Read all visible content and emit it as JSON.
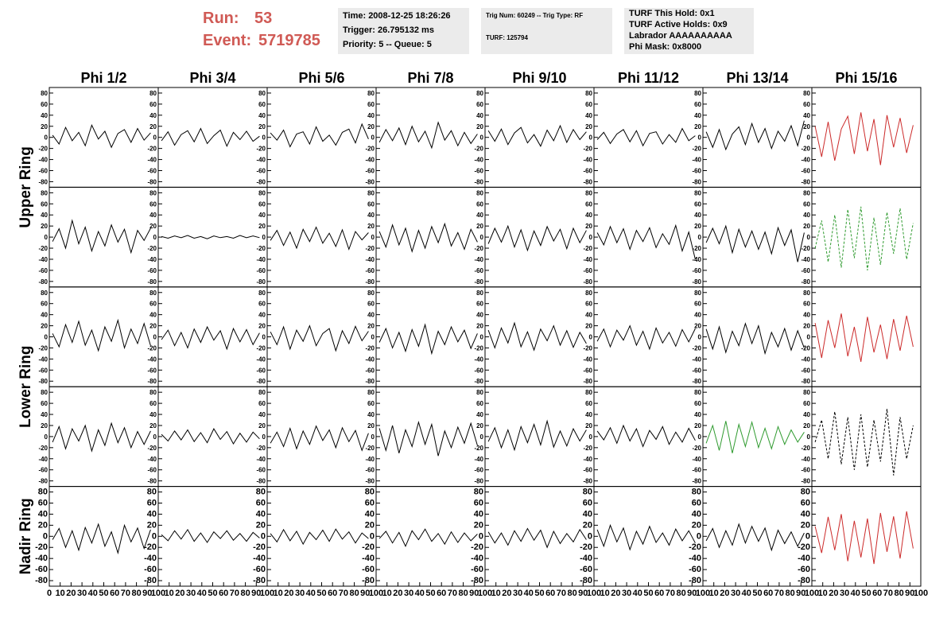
{
  "header": {
    "run_label": "Run:",
    "run": "53",
    "event_label": "Event:",
    "event": "5719785"
  },
  "info_boxes": [
    [
      "Time: 2008-12-25 18:26:26",
      "Trigger: 26.795132 ms",
      "Priority: 5 -- Queue: 5"
    ],
    [
      "Trig Num: 60249 -- Trig Type: RF",
      "TURF: 125794"
    ],
    [
      "TURF This Hold: 0x1",
      "TURF Active Holds: 0x9",
      "Labrador AAAAAAAAAA",
      "Phi Mask: 0x8000"
    ]
  ],
  "chart_data": {
    "type": "line",
    "columns": [
      "Phi 1/2",
      "Phi 3/4",
      "Phi 5/6",
      "Phi 7/8",
      "Phi 9/10",
      "Phi 11/12",
      "Phi 13/14",
      "Phi 15/16"
    ],
    "ring_labels": [
      "Upper Ring",
      "Lower Ring",
      "Nadir Ring"
    ],
    "x": [
      3,
      9,
      15,
      21,
      27,
      33,
      39,
      45,
      51,
      57,
      63,
      69,
      75,
      81,
      87,
      93
    ],
    "xlim": [
      0,
      100
    ],
    "xticks": [
      0,
      10,
      20,
      30,
      40,
      50,
      60,
      70,
      80,
      90,
      100
    ],
    "ylim": [
      -90,
      90
    ],
    "yticks": [
      -80,
      -60,
      -40,
      -20,
      0,
      20,
      40,
      60,
      80
    ],
    "rows": [
      [
        {
          "color": "#000000",
          "values": [
            4,
            -12,
            18,
            -6,
            9,
            -15,
            22,
            -3,
            11,
            -18,
            7,
            14,
            -9,
            16,
            -5,
            8
          ]
        },
        {
          "color": "#000000",
          "values": [
            -6,
            10,
            -14,
            5,
            12,
            -8,
            16,
            -11,
            3,
            13,
            -16,
            9,
            -4,
            11,
            -7,
            2
          ]
        },
        {
          "color": "#000000",
          "values": [
            8,
            -5,
            13,
            -17,
            6,
            10,
            -12,
            19,
            -7,
            4,
            -14,
            9,
            15,
            -10,
            24,
            -3
          ]
        },
        {
          "color": "#000000",
          "values": [
            -9,
            14,
            -6,
            17,
            -13,
            20,
            -8,
            11,
            -19,
            27,
            -5,
            12,
            -15,
            9,
            -11,
            6
          ]
        },
        {
          "color": "#000000",
          "values": [
            12,
            -7,
            15,
            -13,
            8,
            18,
            -10,
            5,
            -16,
            13,
            -6,
            21,
            -9,
            14,
            -4,
            10
          ]
        },
        {
          "color": "#000000",
          "values": [
            -4,
            9,
            -11,
            6,
            14,
            -8,
            12,
            -15,
            7,
            10,
            -12,
            5,
            -9,
            16,
            -6,
            3
          ]
        },
        {
          "color": "#000000",
          "values": [
            10,
            -18,
            14,
            -22,
            6,
            19,
            -13,
            25,
            -9,
            16,
            -20,
            11,
            -7,
            21,
            -15,
            30
          ]
        },
        {
          "color": "#cc2a2a",
          "values": [
            20,
            -35,
            28,
            -42,
            15,
            38,
            -30,
            45,
            -25,
            33,
            -50,
            40,
            -18,
            35,
            -28,
            22
          ]
        }
      ],
      [
        {
          "color": "#000000",
          "values": [
            -8,
            15,
            -20,
            30,
            -12,
            18,
            -25,
            10,
            -16,
            22,
            -9,
            14,
            -28,
            12,
            -6,
            16
          ]
        },
        {
          "color": "#000000",
          "values": [
            1,
            -2,
            2,
            -1,
            3,
            -2,
            1,
            -3,
            2,
            -1,
            1,
            -2,
            3,
            -1,
            2,
            -1
          ]
        },
        {
          "color": "#000000",
          "values": [
            -6,
            12,
            -15,
            9,
            -20,
            14,
            -8,
            18,
            -11,
            7,
            -17,
            13,
            -22,
            10,
            -5,
            8
          ]
        },
        {
          "color": "#000000",
          "values": [
            10,
            -18,
            22,
            -14,
            16,
            -26,
            12,
            -20,
            19,
            -10,
            24,
            -16,
            8,
            -22,
            14,
            -9
          ]
        },
        {
          "color": "#000000",
          "values": [
            -12,
            16,
            -9,
            20,
            -18,
            13,
            -24,
            11,
            -15,
            19,
            -7,
            14,
            -21,
            16,
            -10,
            12
          ]
        },
        {
          "color": "#000000",
          "values": [
            8,
            -14,
            19,
            -10,
            15,
            -22,
            12,
            -8,
            17,
            -19,
            6,
            -13,
            21,
            -25,
            9,
            -40
          ]
        },
        {
          "color": "#000000",
          "values": [
            -10,
            16,
            -12,
            20,
            -28,
            14,
            -18,
            11,
            -22,
            9,
            -30,
            17,
            -15,
            13,
            -45,
            8
          ]
        },
        {
          "color": "#2e9a2e",
          "line_style": "dashed",
          "values": [
            -20,
            30,
            -45,
            40,
            -55,
            50,
            -38,
            55,
            -60,
            35,
            -50,
            45,
            -30,
            52,
            -40,
            25
          ]
        }
      ],
      [
        {
          "color": "#000000",
          "values": [
            6,
            -18,
            22,
            -10,
            28,
            -15,
            12,
            -25,
            18,
            -8,
            30,
            -20,
            14,
            -12,
            24,
            -16
          ]
        },
        {
          "color": "#000000",
          "values": [
            -5,
            12,
            -16,
            8,
            -20,
            14,
            -10,
            18,
            -6,
            11,
            -22,
            15,
            -9,
            13,
            -14,
            7
          ]
        },
        {
          "color": "#000000",
          "values": [
            9,
            -14,
            18,
            -22,
            12,
            -8,
            20,
            -16,
            6,
            15,
            -25,
            11,
            -12,
            19,
            -7,
            10
          ]
        },
        {
          "color": "#000000",
          "values": [
            -10,
            15,
            -20,
            8,
            -26,
            13,
            -17,
            22,
            -30,
            10,
            -14,
            18,
            -9,
            12,
            -21,
            6
          ]
        },
        {
          "color": "#000000",
          "values": [
            12,
            -20,
            16,
            -11,
            25,
            -18,
            9,
            -24,
            14,
            -7,
            20,
            -15,
            11,
            -19,
            8,
            -12
          ]
        },
        {
          "color": "#000000",
          "values": [
            -8,
            14,
            -18,
            12,
            -6,
            20,
            -15,
            10,
            -22,
            16,
            -11,
            8,
            -17,
            13,
            -9,
            15
          ]
        },
        {
          "color": "#000000",
          "values": [
            14,
            -22,
            18,
            -28,
            10,
            -16,
            24,
            -12,
            20,
            -30,
            8,
            -18,
            15,
            -24,
            11,
            -20
          ]
        },
        {
          "color": "#cc2a2a",
          "values": [
            25,
            -38,
            30,
            -20,
            42,
            -35,
            18,
            -45,
            36,
            -28,
            22,
            -40,
            32,
            -25,
            38,
            -18
          ]
        }
      ],
      [
        {
          "color": "#000000",
          "values": [
            -10,
            18,
            -22,
            14,
            -8,
            20,
            -26,
            12,
            -16,
            24,
            -11,
            16,
            -20,
            9,
            -14,
            10
          ]
        },
        {
          "color": "#000000",
          "values": [
            4,
            -8,
            10,
            -6,
            12,
            -9,
            7,
            -11,
            14,
            -5,
            9,
            -13,
            6,
            -10,
            8,
            -4
          ]
        },
        {
          "color": "#000000",
          "values": [
            -12,
            8,
            -18,
            15,
            -22,
            10,
            -14,
            19,
            -7,
            12,
            -20,
            16,
            -9,
            11,
            -25,
            6
          ]
        },
        {
          "color": "#000000",
          "values": [
            15,
            -25,
            20,
            -30,
            12,
            -18,
            26,
            -14,
            22,
            -35,
            10,
            -20,
            17,
            -12,
            24,
            -16
          ]
        },
        {
          "color": "#000000",
          "values": [
            -9,
            16,
            -20,
            12,
            -24,
            18,
            -11,
            22,
            -15,
            28,
            -19,
            10,
            -17,
            14,
            -8,
            12
          ]
        },
        {
          "color": "#000000",
          "values": [
            10,
            -6,
            16,
            -12,
            20,
            -8,
            14,
            -18,
            11,
            -5,
            18,
            -14,
            8,
            -10,
            15,
            -7
          ]
        },
        {
          "color": "#2e9a2e",
          "values": [
            -12,
            20,
            -25,
            28,
            -30,
            22,
            -18,
            26,
            -20,
            15,
            -22,
            18,
            -14,
            12,
            -10,
            8
          ]
        },
        {
          "color": "#000000",
          "line_style": "dashed",
          "values": [
            -10,
            30,
            -40,
            45,
            -50,
            35,
            -60,
            40,
            -55,
            30,
            -45,
            50,
            -70,
            35,
            -40,
            20
          ]
        }
      ],
      [
        {
          "color": "#000000",
          "values": [
            -6,
            14,
            -20,
            10,
            -25,
            16,
            -12,
            22,
            -18,
            8,
            -30,
            20,
            -10,
            15,
            -22,
            12
          ]
        },
        {
          "color": "#000000",
          "values": [
            3,
            -8,
            10,
            -5,
            12,
            -9,
            6,
            -11,
            8,
            -4,
            10,
            -7,
            5,
            -9,
            7,
            -3
          ]
        },
        {
          "color": "#000000",
          "values": [
            5,
            -10,
            12,
            -8,
            9,
            -14,
            7,
            -6,
            11,
            -9,
            13,
            -5,
            8,
            -12,
            6,
            -4
          ]
        },
        {
          "color": "#000000",
          "values": [
            -4,
            9,
            -12,
            7,
            -18,
            10,
            -6,
            13,
            -9,
            5,
            -14,
            8,
            -11,
            6,
            -8,
            4
          ]
        },
        {
          "color": "#000000",
          "values": [
            8,
            -12,
            6,
            -16,
            10,
            -9,
            14,
            -7,
            11,
            -20,
            9,
            -13,
            5,
            -10,
            12,
            -6
          ]
        },
        {
          "color": "#000000",
          "values": [
            12,
            -18,
            20,
            -10,
            15,
            -24,
            9,
            -14,
            18,
            -11,
            6,
            -16,
            13,
            -8,
            10,
            -12
          ]
        },
        {
          "color": "#000000",
          "values": [
            -8,
            14,
            -20,
            10,
            -16,
            22,
            -12,
            18,
            -9,
            15,
            -25,
            11,
            -13,
            8,
            -18,
            6
          ]
        },
        {
          "color": "#cc2a2a",
          "values": [
            18,
            -30,
            35,
            -25,
            40,
            -45,
            28,
            -38,
            32,
            -50,
            42,
            -28,
            36,
            -40,
            45,
            -22
          ]
        }
      ]
    ]
  }
}
